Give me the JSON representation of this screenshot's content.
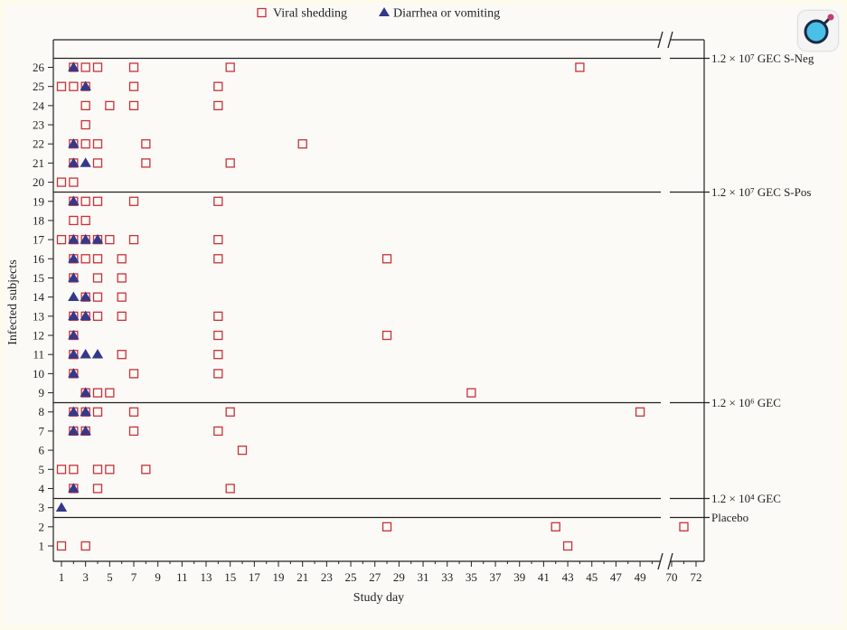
{
  "chart_data": {
    "type": "scatter",
    "xlabel": "Study day",
    "ylabel": "Infected subjects",
    "x_ticks": [
      1,
      3,
      5,
      7,
      9,
      11,
      13,
      15,
      17,
      19,
      21,
      23,
      25,
      27,
      29,
      31,
      33,
      35,
      37,
      39,
      41,
      43,
      45,
      47,
      49,
      70,
      72
    ],
    "x_tick_labels": [
      "1",
      "3",
      "5",
      "7",
      "9",
      "11",
      "13",
      "15",
      "17",
      "19",
      "21",
      "23",
      "25",
      "27",
      "29",
      "31",
      "33",
      "35",
      "37",
      "39",
      "41",
      "43",
      "45",
      "47",
      "49",
      "70",
      "72"
    ],
    "x_axis_break": "between 50 and 69",
    "y_ticks": [
      1,
      2,
      3,
      4,
      5,
      6,
      7,
      8,
      9,
      10,
      11,
      12,
      13,
      14,
      15,
      16,
      17,
      18,
      19,
      20,
      21,
      22,
      23,
      24,
      25,
      26
    ],
    "legend": {
      "placement": "top-center",
      "items": [
        {
          "label": "Viral shedding",
          "marker": "open-square",
          "color": "#c8313a"
        },
        {
          "label": "Diarrhea or vomiting",
          "marker": "filled-triangle",
          "color": "#34398a"
        }
      ]
    },
    "groups": [
      {
        "label": "1.2 × 10⁷ GEC S-Neg",
        "subjects": [
          20,
          26
        ]
      },
      {
        "label": "1.2 × 10⁷ GEC S-Pos",
        "subjects": [
          9,
          19
        ]
      },
      {
        "label": "1.2 × 10⁶ GEC",
        "subjects": [
          4,
          8
        ]
      },
      {
        "label": "1.2 × 10⁴ GEC",
        "subjects": [
          3,
          3
        ]
      },
      {
        "label": "Placebo",
        "subjects": [
          1,
          2
        ]
      }
    ],
    "series": [
      {
        "name": "Viral shedding",
        "points": [
          {
            "subject": 26,
            "days": [
              2,
              3,
              4,
              7,
              15,
              44
            ]
          },
          {
            "subject": 25,
            "days": [
              1,
              2,
              3,
              7,
              14
            ]
          },
          {
            "subject": 24,
            "days": [
              3,
              5,
              7,
              14
            ]
          },
          {
            "subject": 23,
            "days": [
              3
            ]
          },
          {
            "subject": 22,
            "days": [
              2,
              3,
              4,
              8,
              21
            ]
          },
          {
            "subject": 21,
            "days": [
              2,
              4,
              8,
              15
            ]
          },
          {
            "subject": 20,
            "days": [
              1,
              2
            ]
          },
          {
            "subject": 19,
            "days": [
              2,
              3,
              4,
              7,
              14
            ]
          },
          {
            "subject": 18,
            "days": [
              2,
              3
            ]
          },
          {
            "subject": 17,
            "days": [
              1,
              2,
              3,
              4,
              5,
              7,
              14
            ]
          },
          {
            "subject": 16,
            "days": [
              2,
              3,
              4,
              6,
              14,
              28
            ]
          },
          {
            "subject": 15,
            "days": [
              2,
              4,
              6
            ]
          },
          {
            "subject": 14,
            "days": [
              3,
              4,
              6
            ]
          },
          {
            "subject": 13,
            "days": [
              2,
              3,
              4,
              6,
              14
            ]
          },
          {
            "subject": 12,
            "days": [
              2,
              14,
              28
            ]
          },
          {
            "subject": 11,
            "days": [
              2,
              6,
              14
            ]
          },
          {
            "subject": 10,
            "days": [
              2,
              7,
              14
            ]
          },
          {
            "subject": 9,
            "days": [
              3,
              4,
              5,
              35
            ]
          },
          {
            "subject": 8,
            "days": [
              2,
              3,
              4,
              7,
              15,
              49
            ]
          },
          {
            "subject": 7,
            "days": [
              2,
              3,
              7,
              14
            ]
          },
          {
            "subject": 6,
            "days": [
              16
            ]
          },
          {
            "subject": 5,
            "days": [
              1,
              2,
              4,
              5,
              8
            ]
          },
          {
            "subject": 4,
            "days": [
              2,
              4,
              15
            ]
          },
          {
            "subject": 2,
            "days": [
              28,
              42,
              71
            ]
          },
          {
            "subject": 1,
            "days": [
              1,
              3,
              43
            ]
          }
        ]
      },
      {
        "name": "Diarrhea or vomiting",
        "points": [
          {
            "subject": 26,
            "days": [
              2
            ]
          },
          {
            "subject": 25,
            "days": [
              3
            ]
          },
          {
            "subject": 22,
            "days": [
              2
            ]
          },
          {
            "subject": 21,
            "days": [
              2,
              3
            ]
          },
          {
            "subject": 19,
            "days": [
              2
            ]
          },
          {
            "subject": 17,
            "days": [
              2,
              3,
              4
            ]
          },
          {
            "subject": 16,
            "days": [
              2
            ]
          },
          {
            "subject": 15,
            "days": [
              2
            ]
          },
          {
            "subject": 14,
            "days": [
              2,
              3
            ]
          },
          {
            "subject": 13,
            "days": [
              2,
              3
            ]
          },
          {
            "subject": 12,
            "days": [
              2
            ]
          },
          {
            "subject": 11,
            "days": [
              2,
              3,
              4
            ]
          },
          {
            "subject": 10,
            "days": [
              2
            ]
          },
          {
            "subject": 9,
            "days": [
              3
            ]
          },
          {
            "subject": 8,
            "days": [
              2,
              3
            ]
          },
          {
            "subject": 7,
            "days": [
              2,
              3
            ]
          },
          {
            "subject": 4,
            "days": [
              2
            ]
          },
          {
            "subject": 3,
            "days": [
              1
            ]
          }
        ]
      }
    ]
  },
  "colors": {
    "shedding": "#c8313a",
    "symptom": "#34398a",
    "axis": "#222222"
  },
  "corner_icon": "magnifier-icon"
}
